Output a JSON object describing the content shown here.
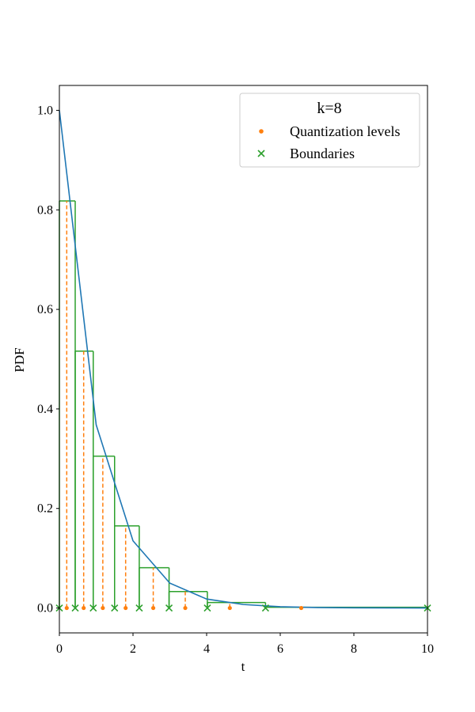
{
  "chart_data": {
    "type": "line",
    "xlabel": "t",
    "ylabel": "PDF",
    "xlim": [
      0,
      10
    ],
    "ylim": [
      -0.05,
      1.05
    ],
    "x_ticks": [
      0,
      2,
      4,
      6,
      8,
      10
    ],
    "y_ticks": [
      0.0,
      0.2,
      0.4,
      0.6,
      0.8,
      1.0
    ],
    "x_tick_labels": [
      "0",
      "2",
      "4",
      "6",
      "8",
      "10"
    ],
    "y_tick_labels": [
      "0.0",
      "0.2",
      "0.4",
      "0.6",
      "0.8",
      "1.0"
    ],
    "grid": false,
    "legend": {
      "title": "k=8",
      "placement": "top-right",
      "entries": [
        "Quantization levels",
        "Boundaries"
      ]
    },
    "pdf_curve": {
      "color": "#1f77b4",
      "points": [
        [
          0,
          1.0
        ],
        [
          1,
          0.368
        ],
        [
          2,
          0.135
        ],
        [
          3,
          0.05
        ],
        [
          4,
          0.018
        ],
        [
          5,
          0.007
        ],
        [
          6,
          0.0025
        ],
        [
          7,
          0.0009
        ],
        [
          8,
          0.0003
        ],
        [
          9,
          0.0001
        ],
        [
          10,
          0.0
        ]
      ]
    },
    "boundaries": {
      "name": "Boundaries",
      "color": "#2ca02c",
      "values": [
        0.0,
        0.43,
        0.92,
        1.5,
        2.17,
        2.98,
        4.02,
        5.6,
        10.0
      ]
    },
    "quantization_levels": {
      "name": "Quantization levels",
      "color": "#ff7f0e",
      "values": [
        0.2,
        0.66,
        1.18,
        1.8,
        2.55,
        3.42,
        4.63,
        6.57
      ]
    },
    "step_heights": [
      0.818,
      0.516,
      0.305,
      0.165,
      0.081,
      0.033,
      0.011,
      0.0015
    ]
  }
}
